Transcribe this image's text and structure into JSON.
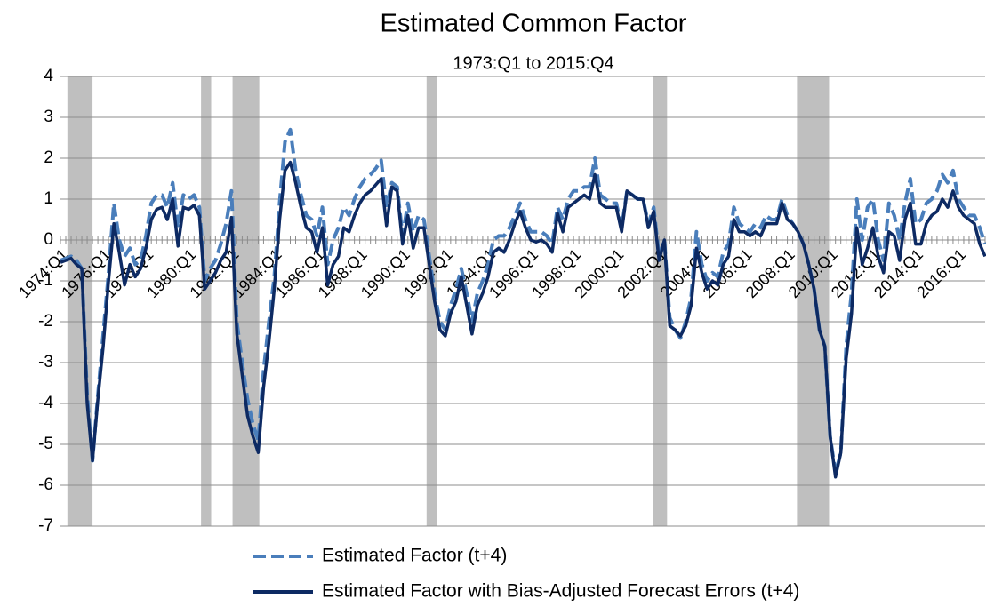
{
  "chart_data": {
    "type": "line",
    "title": "Estimated Common Factor",
    "subtitle": "1973:Q1 to 2015:Q4",
    "categories": [
      "1974:Q1",
      null,
      null,
      null,
      null,
      null,
      null,
      null,
      "1976:Q1",
      null,
      null,
      null,
      null,
      null,
      null,
      null,
      "1978:Q1",
      null,
      null,
      null,
      null,
      null,
      null,
      null,
      "1980:Q1",
      null,
      null,
      null,
      null,
      null,
      null,
      null,
      "1982:Q1",
      null,
      null,
      null,
      null,
      null,
      null,
      null,
      "1984:Q1",
      null,
      null,
      null,
      null,
      null,
      null,
      null,
      "1986:Q1",
      null,
      null,
      null,
      null,
      null,
      null,
      null,
      "1988:Q1",
      null,
      null,
      null,
      null,
      null,
      null,
      null,
      "1990:Q1",
      null,
      null,
      null,
      null,
      null,
      null,
      null,
      "1992:Q1",
      null,
      null,
      null,
      null,
      null,
      null,
      null,
      "1994:Q1",
      null,
      null,
      null,
      null,
      null,
      null,
      null,
      "1996:Q1",
      null,
      null,
      null,
      null,
      null,
      null,
      null,
      "1998:Q1",
      null,
      null,
      null,
      null,
      null,
      null,
      null,
      "2000:Q1",
      null,
      null,
      null,
      null,
      null,
      null,
      null,
      "2002:Q1",
      null,
      null,
      null,
      null,
      null,
      null,
      null,
      "2004:Q1",
      null,
      null,
      null,
      null,
      null,
      null,
      null,
      "2006:Q1",
      null,
      null,
      null,
      null,
      null,
      null,
      null,
      "2008:Q1",
      null,
      null,
      null,
      null,
      null,
      null,
      null,
      "2010:Q1",
      null,
      null,
      null,
      null,
      null,
      null,
      null,
      "2012:Q1",
      null,
      null,
      null,
      null,
      null,
      null,
      null,
      "2014:Q1",
      null,
      null,
      null,
      null,
      null,
      null,
      null,
      "2016:Q1",
      null,
      null,
      null,
      null,
      null
    ],
    "series": [
      {
        "name": "Estimated Factor (t+4)",
        "color": "#4a7ebb",
        "dashed": true,
        "values": [
          -0.5,
          -0.45,
          -0.4,
          -0.5,
          -0.7,
          -3.8,
          -5.4,
          -3.8,
          -2.3,
          -0.8,
          0.9,
          0.0,
          -0.4,
          -0.2,
          -0.6,
          -0.5,
          0.1,
          0.9,
          1.1,
          1.1,
          0.8,
          1.4,
          0.3,
          1.1,
          1.0,
          1.1,
          0.8,
          -1.0,
          -0.7,
          -0.5,
          -0.1,
          0.4,
          1.2,
          -2.0,
          -3.0,
          -3.9,
          -4.5,
          -4.9,
          -3.2,
          -2.0,
          -0.9,
          0.9,
          2.4,
          2.7,
          1.7,
          1.1,
          0.6,
          0.5,
          0.1,
          0.8,
          -0.6,
          0.0,
          0.3,
          0.8,
          0.6,
          1.0,
          1.3,
          1.5,
          1.6,
          1.75,
          1.95,
          0.8,
          1.4,
          1.3,
          0.1,
          0.9,
          0.2,
          0.6,
          0.5,
          -0.4,
          -1.3,
          -2.0,
          -2.2,
          -1.6,
          -1.2,
          -0.7,
          -1.3,
          -2.0,
          -1.3,
          -1.0,
          -0.6,
          0.0,
          0.1,
          0.1,
          0.3,
          0.6,
          0.9,
          0.5,
          0.2,
          0.2,
          0.2,
          0.1,
          -0.1,
          0.8,
          0.5,
          1.0,
          1.2,
          1.2,
          1.3,
          1.3,
          2.0,
          1.1,
          1.0,
          0.9,
          0.9,
          0.3,
          1.2,
          1.1,
          1.0,
          1.0,
          0.4,
          0.8,
          -0.4,
          0.0,
          -1.9,
          -2.2,
          -2.4,
          -2.0,
          -1.4,
          0.2,
          -0.6,
          -1.0,
          -0.8,
          -0.9,
          -0.3,
          -0.1,
          0.8,
          0.4,
          0.3,
          0.2,
          0.4,
          0.3,
          0.6,
          0.5,
          0.5,
          1.0,
          0.6,
          0.4,
          0.2,
          -0.1,
          -0.6,
          -1.2,
          -2.2,
          -2.6,
          -4.8,
          -5.7,
          -5.2,
          -2.6,
          -1.3,
          1.0,
          0.0,
          0.8,
          1.0,
          0.0,
          -0.5,
          0.9,
          0.6,
          0.0,
          0.9,
          1.5,
          0.4,
          0.5,
          0.9,
          1.0,
          1.2,
          1.6,
          1.4,
          1.7,
          1.0,
          0.8,
          0.6,
          0.6,
          0.3,
          -0.1
        ]
      },
      {
        "name": "Estimated Factor with Bias-Adjusted Forecast Errors (t+4)",
        "color": "#0d2a63",
        "dashed": false,
        "values": [
          -0.55,
          -0.5,
          -0.45,
          -0.6,
          -0.7,
          -4.0,
          -5.4,
          -3.9,
          -2.6,
          -1.0,
          0.4,
          -0.3,
          -1.1,
          -0.6,
          -0.9,
          -0.7,
          -0.2,
          0.5,
          0.75,
          0.8,
          0.5,
          1.0,
          -0.15,
          0.8,
          0.75,
          0.85,
          0.6,
          -1.2,
          -1.0,
          -0.8,
          -0.5,
          -0.3,
          0.55,
          -2.3,
          -3.3,
          -4.3,
          -4.8,
          -5.2,
          -3.6,
          -2.5,
          -1.2,
          0.5,
          1.7,
          1.9,
          1.4,
          0.8,
          0.3,
          0.2,
          -0.3,
          0.3,
          -1.1,
          -0.6,
          -0.4,
          0.3,
          0.2,
          0.6,
          0.9,
          1.1,
          1.2,
          1.35,
          1.5,
          0.35,
          1.3,
          1.2,
          -0.1,
          0.6,
          -0.2,
          0.3,
          0.3,
          -0.6,
          -1.5,
          -2.2,
          -2.35,
          -1.8,
          -1.5,
          -0.9,
          -1.6,
          -2.3,
          -1.6,
          -1.3,
          -0.9,
          -0.3,
          -0.2,
          -0.3,
          0.0,
          0.4,
          0.7,
          0.3,
          0.0,
          -0.05,
          0.0,
          -0.1,
          -0.3,
          0.65,
          0.2,
          0.8,
          0.9,
          1.0,
          1.1,
          1.0,
          1.6,
          0.9,
          0.8,
          0.8,
          0.8,
          0.2,
          1.2,
          1.1,
          1.0,
          1.0,
          0.3,
          0.7,
          -0.5,
          0.0,
          -2.1,
          -2.2,
          -2.35,
          -2.1,
          -1.6,
          -0.2,
          -0.8,
          -1.2,
          -1.0,
          -1.1,
          -0.6,
          -0.4,
          0.5,
          0.2,
          0.2,
          0.1,
          0.2,
          0.1,
          0.4,
          0.4,
          0.4,
          0.9,
          0.5,
          0.4,
          0.2,
          -0.1,
          -0.6,
          -1.2,
          -2.2,
          -2.6,
          -4.8,
          -5.8,
          -5.2,
          -2.9,
          -1.8,
          0.3,
          -0.6,
          -0.2,
          0.3,
          -0.4,
          -0.8,
          0.2,
          0.1,
          -0.5,
          0.5,
          0.9,
          -0.1,
          -0.1,
          0.4,
          0.6,
          0.7,
          1.0,
          0.8,
          1.2,
          0.8,
          0.6,
          0.5,
          0.4,
          -0.1,
          -0.4
        ]
      }
    ],
    "shaded_periods": [
      [
        1.3,
        6
      ],
      [
        26.3,
        28.2
      ],
      [
        32.2,
        37.2
      ],
      [
        68.5,
        70.5
      ],
      [
        110.8,
        113.5
      ],
      [
        137.8,
        143.8
      ]
    ],
    "shade_color": "#bfbfbf",
    "ylim": [
      -7,
      4
    ],
    "yticks": [
      -7,
      -6,
      -5,
      -4,
      -3,
      -2,
      -1,
      0,
      1,
      2,
      3,
      4
    ],
    "grid": true
  }
}
